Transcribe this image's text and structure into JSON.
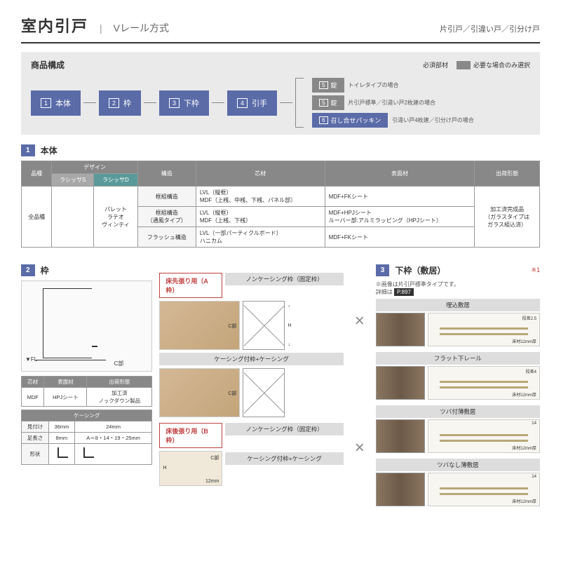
{
  "header": {
    "title": "室内引戸",
    "subtitle": "Vレール方式",
    "right": "片引戸／引違い戸／引分け戸"
  },
  "composition": {
    "title": "商品構成",
    "legend_required": "必須部材",
    "legend_optional": "必要な場合のみ選択",
    "colors": {
      "required": "#5a6ba8",
      "optional": "#888888"
    },
    "steps": [
      {
        "num": "1",
        "label": "本体"
      },
      {
        "num": "2",
        "label": "枠"
      },
      {
        "num": "3",
        "label": "下枠"
      },
      {
        "num": "4",
        "label": "引手"
      }
    ],
    "branches": [
      {
        "num": "5",
        "label": "錠",
        "note": "トイレタイプの場合",
        "color": "#888888"
      },
      {
        "num": "5",
        "label": "錠",
        "note": "片引戸標準／引違い戸2枚建の場合",
        "color": "#888888"
      },
      {
        "num": "6",
        "label": "召し合せパッキン",
        "note": "引違い戸4枚建／引分け戸の場合",
        "color": "#5a6ba8"
      }
    ]
  },
  "section1": {
    "num": "1",
    "title": "本体",
    "headers": {
      "品種": "品種",
      "デザイン": "デザイン",
      "ラシッサS": "ラシッサS",
      "ラシッサD": "ラシッサD",
      "構造": "構造",
      "芯材": "芯材",
      "表面材": "表面材",
      "出荷形態": "出荷形態"
    },
    "body": {
      "variety": "全品種",
      "designs": "パレット\nラテオ\nヴィンティ",
      "rows": [
        {
          "構造": "框組構造",
          "芯材": "LVL（縦框）\nMDF（上桟、中桟、下桟、パネル部）",
          "表面材": "MDF+FKシート"
        },
        {
          "構造": "框組構造\n（通風タイプ）",
          "芯材": "LVL（縦框）\nMDF（上桟、下桟）",
          "表面材": "MDF+HPJシート\nルーバー部:アルミラッピング（HPJシート）"
        },
        {
          "構造": "フラッシュ構造",
          "芯材": "LVL（一部パーティクルボード）\nハニカム",
          "表面材": "MDF+FKシート"
        }
      ],
      "shipping": "加工済完成品\n（ガラスタイプは\nガラス組込済）"
    }
  },
  "section2": {
    "num": "2",
    "title": "枠",
    "fl": "▼FL",
    "c": "C部",
    "table1": {
      "芯材": "芯材",
      "表面材": "表面材",
      "出荷形態": "出荷形態",
      "r": [
        "MDF",
        "HPJシート",
        "加工済\nノックダウン製品"
      ]
    },
    "table2": {
      "title": "ケーシング",
      "見付け": "見付け",
      "v1": "36mm",
      "v2": "24mm",
      "足長さ": "足長さ",
      "v3": "8mm",
      "v4": "A＝8・14・19・25mm",
      "形状": "形状"
    },
    "frames": {
      "a_label": "床先張り用（A枠）",
      "a_color": "#c04040",
      "b_label": "床後張り用（B枠）",
      "b_color": "#c04040",
      "types": [
        "ノンケーシング枠（固定枠）",
        "ケーシング付枠+ケーシング"
      ],
      "h": "H",
      "c": "C部",
      "dim": "12mm"
    }
  },
  "section3": {
    "num": "3",
    "title": "下枠（敷居）",
    "note1": "※画像は片引戸標準タイプです。",
    "note2": "詳細は",
    "ref": "P.897",
    "star": "※1",
    "items": [
      {
        "title": "埋込敷居",
        "dims": [
          "段差2.5",
          "19.1",
          "19.1",
          "12.8",
          "床材12mm厚"
        ]
      },
      {
        "title": "フラット下レール",
        "dims": [
          "段差4",
          "51",
          "床材12mm厚"
        ]
      },
      {
        "title": "ツバ付薄敷居",
        "dims": [
          "14",
          "段差2",
          "7",
          "a",
          "7",
          "床材12mm厚"
        ]
      },
      {
        "title": "ツバなし薄敷居",
        "dims": [
          "14",
          "段差2",
          "a",
          "床材12mm厚"
        ]
      }
    ]
  }
}
